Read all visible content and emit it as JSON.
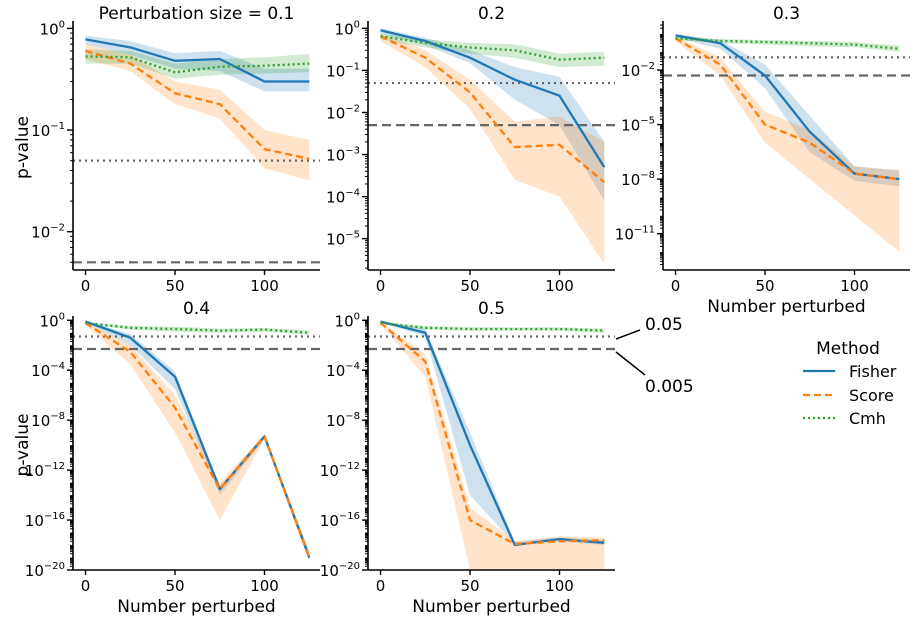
{
  "shared": {
    "x_values": [
      0,
      25,
      50,
      75,
      100,
      125
    ],
    "x_ticks": [
      "0",
      "50",
      "100"
    ],
    "ylabel": "p-value",
    "xlabel": "Number perturbed",
    "threshold_colors": {
      "line": "#666666"
    }
  },
  "chart_data": [
    {
      "type": "line",
      "title": "Perturbation size = 0.1",
      "yscale": "log",
      "ylim": [
        0.0042,
        1.08
      ],
      "show_ylabel": true,
      "show_xlabel": false,
      "y_ticks": [
        {
          "base": "10",
          "exp": "0"
        },
        {
          "base": "10",
          "exp": "−1"
        },
        {
          "base": "10",
          "exp": "−2"
        }
      ],
      "y_tick_values": [
        1,
        0.1,
        0.01
      ],
      "series": [
        {
          "name": "Fisher",
          "color": "#1f77b4",
          "dash": "solid",
          "values": [
            0.78,
            0.65,
            0.48,
            0.5,
            0.3,
            0.3
          ],
          "lower": [
            0.7,
            0.55,
            0.4,
            0.38,
            0.24,
            0.24
          ],
          "upper": [
            0.85,
            0.75,
            0.57,
            0.6,
            0.4,
            0.4
          ]
        },
        {
          "name": "Score",
          "color": "#ff7f0e",
          "dash": "dashed",
          "values": [
            0.6,
            0.45,
            0.23,
            0.18,
            0.065,
            0.052
          ],
          "lower": [
            0.5,
            0.38,
            0.18,
            0.13,
            0.042,
            0.032
          ],
          "upper": [
            0.7,
            0.55,
            0.3,
            0.25,
            0.1,
            0.08
          ]
        },
        {
          "name": "Cmh",
          "color": "#2ca02c",
          "dash": "dotted",
          "values": [
            0.53,
            0.52,
            0.37,
            0.42,
            0.43,
            0.45
          ],
          "lower": [
            0.45,
            0.45,
            0.32,
            0.35,
            0.36,
            0.37
          ],
          "upper": [
            0.62,
            0.6,
            0.45,
            0.5,
            0.52,
            0.56
          ]
        }
      ],
      "thresholds": [
        0.05,
        0.005
      ]
    },
    {
      "type": "line",
      "title": "0.2",
      "yscale": "log",
      "ylim": [
        1.8e-06,
        1.2
      ],
      "show_ylabel": false,
      "show_xlabel": false,
      "y_ticks": [
        {
          "base": "10",
          "exp": "0"
        },
        {
          "base": "10",
          "exp": "−1"
        },
        {
          "base": "10",
          "exp": "−2"
        },
        {
          "base": "10",
          "exp": "−3"
        },
        {
          "base": "10",
          "exp": "−4"
        },
        {
          "base": "10",
          "exp": "−5"
        }
      ],
      "y_tick_values": [
        1,
        0.1,
        0.01,
        0.001,
        0.0001,
        1e-05
      ],
      "series": [
        {
          "name": "Fisher",
          "color": "#1f77b4",
          "dash": "solid",
          "values": [
            0.9,
            0.5,
            0.2,
            0.06,
            0.025,
            0.0005
          ],
          "lower": [
            0.75,
            0.4,
            0.15,
            0.02,
            0.005,
            8e-05
          ],
          "upper": [
            1.0,
            0.6,
            0.3,
            0.12,
            0.07,
            0.002
          ]
        },
        {
          "name": "Score",
          "color": "#ff7f0e",
          "dash": "dashed",
          "values": [
            0.65,
            0.2,
            0.03,
            0.0015,
            0.0017,
            0.00022
          ],
          "lower": [
            0.5,
            0.12,
            0.012,
            0.00025,
            0.0001,
            2.5e-06
          ],
          "upper": [
            0.75,
            0.3,
            0.06,
            0.006,
            0.008,
            0.002
          ]
        },
        {
          "name": "Cmh",
          "color": "#2ca02c",
          "dash": "dotted",
          "values": [
            0.65,
            0.45,
            0.35,
            0.3,
            0.18,
            0.2
          ],
          "lower": [
            0.55,
            0.35,
            0.25,
            0.2,
            0.12,
            0.13
          ],
          "upper": [
            0.75,
            0.55,
            0.45,
            0.42,
            0.25,
            0.28
          ]
        }
      ],
      "thresholds": [
        0.05,
        0.005
      ]
    },
    {
      "type": "line",
      "title": "0.3",
      "yscale": "log",
      "ylim": [
        1e-13,
        3
      ],
      "show_ylabel": false,
      "show_xlabel": true,
      "y_ticks": [
        {
          "base": "10",
          "exp": "−2"
        },
        {
          "base": "10",
          "exp": "−5"
        },
        {
          "base": "10",
          "exp": "−8"
        },
        {
          "base": "10",
          "exp": "−11"
        }
      ],
      "y_tick_values": [
        0.01,
        1e-05,
        1e-08,
        1e-11
      ],
      "series": [
        {
          "name": "Fisher",
          "color": "#1f77b4",
          "dash": "solid",
          "values": [
            0.8,
            0.3,
            0.005,
            4e-06,
            2e-08,
            1e-08
          ],
          "lower": [
            0.6,
            0.15,
            0.001,
            3e-07,
            8e-09,
            4e-09
          ],
          "upper": [
            0.95,
            0.45,
            0.02,
            3e-05,
            5e-08,
            3e-08
          ]
        },
        {
          "name": "Score",
          "color": "#ff7f0e",
          "dash": "dashed",
          "values": [
            0.55,
            0.02,
            1e-05,
            1e-06,
            2e-08,
            1e-08
          ],
          "lower": [
            0.4,
            0.005,
            1e-06,
            1e-08,
            1e-10,
            1e-12
          ],
          "upper": [
            0.7,
            0.05,
            5e-05,
            5e-06,
            5e-08,
            3e-08
          ]
        },
        {
          "name": "Cmh",
          "color": "#2ca02c",
          "dash": "dotted",
          "values": [
            0.55,
            0.4,
            0.35,
            0.3,
            0.25,
            0.15
          ],
          "lower": [
            0.45,
            0.3,
            0.25,
            0.2,
            0.18,
            0.1
          ],
          "upper": [
            0.65,
            0.5,
            0.45,
            0.4,
            0.35,
            0.22
          ]
        }
      ],
      "thresholds": [
        0.05,
        0.005
      ]
    },
    {
      "type": "line",
      "title": "0.4",
      "yscale": "log",
      "ylim": [
        1e-20,
        1.05
      ],
      "show_ylabel": true,
      "show_xlabel": true,
      "y_ticks": [
        {
          "base": "10",
          "exp": "0"
        },
        {
          "base": "10",
          "exp": "−4"
        },
        {
          "base": "10",
          "exp": "−8"
        },
        {
          "base": "10",
          "exp": "−12"
        },
        {
          "base": "10",
          "exp": "−16"
        },
        {
          "base": "10",
          "exp": "−20"
        }
      ],
      "y_tick_values": [
        1,
        0.0001,
        1e-08,
        1e-12,
        1e-16,
        1e-20
      ],
      "series": [
        {
          "name": "Fisher",
          "color": "#1f77b4",
          "dash": "solid",
          "values": [
            0.8,
            0.04,
            3e-05,
            3e-14,
            5e-10,
            1e-19
          ],
          "lower": [
            0.7,
            0.01,
            3e-06,
            1e-14,
            3e-10,
            5e-20
          ],
          "upper": [
            0.9,
            0.08,
            8e-05,
            5e-14,
            8e-10,
            3e-19
          ]
        },
        {
          "name": "Score",
          "color": "#ff7f0e",
          "dash": "dashed",
          "values": [
            0.6,
            0.003,
            1e-07,
            3e-14,
            5e-10,
            1e-19
          ],
          "lower": [
            0.4,
            0.0003,
            1e-09,
            1e-16,
            3e-10,
            5e-20
          ],
          "upper": [
            0.75,
            0.01,
            1e-06,
            1e-13,
            8e-10,
            3e-19
          ]
        },
        {
          "name": "Cmh",
          "color": "#2ca02c",
          "dash": "dotted",
          "values": [
            0.6,
            0.25,
            0.2,
            0.15,
            0.18,
            0.1
          ],
          "lower": [
            0.5,
            0.18,
            0.12,
            0.1,
            0.12,
            0.07
          ],
          "upper": [
            0.7,
            0.35,
            0.3,
            0.22,
            0.25,
            0.15
          ]
        }
      ],
      "thresholds": [
        0.05,
        0.005
      ]
    },
    {
      "type": "line",
      "title": "0.5",
      "yscale": "log",
      "ylim": [
        1e-20,
        1.05
      ],
      "show_ylabel": false,
      "show_xlabel": true,
      "y_ticks": [
        {
          "base": "10",
          "exp": "0"
        },
        {
          "base": "10",
          "exp": "−4"
        },
        {
          "base": "10",
          "exp": "−8"
        },
        {
          "base": "10",
          "exp": "−12"
        },
        {
          "base": "10",
          "exp": "−16"
        },
        {
          "base": "10",
          "exp": "−20"
        }
      ],
      "y_tick_values": [
        1,
        0.0001,
        1e-08,
        1e-12,
        1e-16,
        1e-20
      ],
      "series": [
        {
          "name": "Fisher",
          "color": "#1f77b4",
          "dash": "solid",
          "values": [
            0.8,
            0.1,
            1e-10,
            1e-18,
            3e-18,
            1.5e-18
          ],
          "lower": [
            0.7,
            0.05,
            1e-14,
            1.2e-18,
            2e-18,
            1e-18
          ],
          "upper": [
            0.9,
            0.2,
            1e-09,
            1.8e-18,
            4e-18,
            2.5e-18
          ]
        },
        {
          "name": "Score",
          "color": "#ff7f0e",
          "dash": "dashed",
          "values": [
            0.65,
            0.0005,
            1e-16,
            1.2e-18,
            2e-18,
            2.5e-18
          ],
          "lower": [
            0.45,
            3e-05,
            1e-20,
            1e-20,
            1e-20,
            1e-20
          ],
          "upper": [
            0.75,
            0.002,
            1e-15,
            2e-18,
            5e-18,
            4e-18
          ]
        },
        {
          "name": "Cmh",
          "color": "#2ca02c",
          "dash": "dotted",
          "values": [
            0.6,
            0.25,
            0.2,
            0.2,
            0.2,
            0.15
          ],
          "lower": [
            0.5,
            0.18,
            0.14,
            0.15,
            0.14,
            0.1
          ],
          "upper": [
            0.7,
            0.35,
            0.28,
            0.26,
            0.27,
            0.22
          ]
        }
      ],
      "thresholds": [
        0.05,
        0.005
      ]
    }
  ],
  "annotations": {
    "upper": "0.05",
    "lower": "0.005"
  },
  "legend": {
    "title": "Method",
    "entries": [
      {
        "label": "Fisher",
        "color": "#1f77b4",
        "dash": "solid"
      },
      {
        "label": "Score",
        "color": "#ff7f0e",
        "dash": "dashed"
      },
      {
        "label": "Cmh",
        "color": "#2ca02c",
        "dash": "dotted"
      }
    ]
  }
}
